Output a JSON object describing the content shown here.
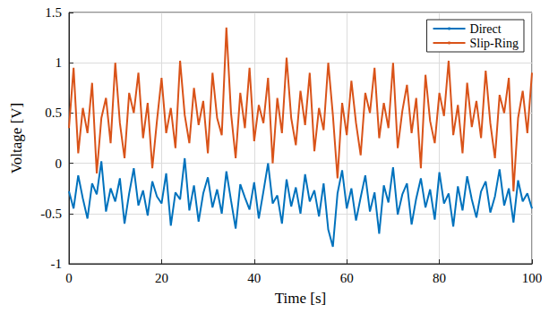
{
  "chart_data": {
    "type": "line",
    "x_label": "Time [s]",
    "y_label": "Voltage [V]",
    "x": [
      0,
      1,
      2,
      3,
      4,
      5,
      6,
      7,
      8,
      9,
      10,
      11,
      12,
      13,
      14,
      15,
      16,
      17,
      18,
      19,
      20,
      21,
      22,
      23,
      24,
      25,
      26,
      27,
      28,
      29,
      30,
      31,
      32,
      33,
      34,
      35,
      36,
      37,
      38,
      39,
      40,
      41,
      42,
      43,
      44,
      45,
      46,
      47,
      48,
      49,
      50,
      51,
      52,
      53,
      54,
      55,
      56,
      57,
      58,
      59,
      60,
      61,
      62,
      63,
      64,
      65,
      66,
      67,
      68,
      69,
      70,
      71,
      72,
      73,
      74,
      75,
      76,
      77,
      78,
      79,
      80,
      81,
      82,
      83,
      84,
      85,
      86,
      87,
      88,
      89,
      90,
      91,
      92,
      93,
      94,
      95,
      96,
      97,
      98,
      99,
      100
    ],
    "series": [
      {
        "name": "Direct",
        "color": "#0072BD",
        "values": [
          -0.28,
          -0.45,
          -0.12,
          -0.35,
          -0.55,
          -0.2,
          -0.31,
          0.02,
          -0.48,
          -0.25,
          -0.38,
          -0.15,
          -0.6,
          -0.3,
          -0.05,
          -0.42,
          -0.27,
          -0.52,
          -0.18,
          -0.33,
          -0.4,
          -0.1,
          -0.62,
          -0.29,
          -0.36,
          0.05,
          -0.47,
          -0.22,
          -0.58,
          -0.3,
          -0.14,
          -0.44,
          -0.26,
          -0.5,
          -0.08,
          -0.37,
          -0.65,
          -0.21,
          -0.34,
          -0.46,
          -0.19,
          -0.55,
          -0.28,
          0.0,
          -0.4,
          -0.32,
          -0.6,
          -0.16,
          -0.43,
          -0.24,
          -0.5,
          -0.11,
          -0.38,
          -0.27,
          -0.53,
          -0.2,
          -0.66,
          -0.83,
          -0.3,
          -0.07,
          -0.45,
          -0.25,
          -0.57,
          -0.34,
          -0.12,
          -0.48,
          -0.29,
          -0.7,
          -0.22,
          -0.39,
          -0.04,
          -0.51,
          -0.31,
          -0.2,
          -0.61,
          -0.35,
          -0.15,
          -0.44,
          -0.26,
          -0.56,
          -0.09,
          -0.4,
          -0.3,
          -0.63,
          -0.23,
          -0.47,
          -0.13,
          -0.36,
          -0.54,
          -0.28,
          -0.18,
          -0.49,
          -0.33,
          -0.06,
          -0.42,
          -0.25,
          -0.59,
          -0.17,
          -0.38,
          -0.3,
          -0.45
        ]
      },
      {
        "name": "Slip-Ring",
        "color": "#D95319",
        "values": [
          0.35,
          0.95,
          0.1,
          0.55,
          0.3,
          0.8,
          -0.1,
          0.45,
          0.65,
          0.2,
          1.0,
          0.4,
          0.05,
          0.7,
          0.5,
          0.9,
          0.25,
          0.6,
          -0.05,
          0.42,
          0.85,
          0.3,
          0.55,
          0.15,
          1.02,
          0.48,
          0.2,
          0.75,
          0.38,
          0.62,
          0.1,
          0.9,
          0.45,
          0.28,
          1.35,
          0.5,
          0.05,
          0.7,
          0.35,
          0.95,
          0.22,
          0.58,
          0.4,
          0.85,
          0.0,
          0.65,
          0.3,
          1.05,
          0.45,
          0.18,
          0.72,
          0.38,
          0.9,
          0.12,
          0.55,
          0.33,
          1.0,
          0.48,
          -0.15,
          0.6,
          0.28,
          0.82,
          0.4,
          0.08,
          0.7,
          0.5,
          0.95,
          0.25,
          0.6,
          0.35,
          1.0,
          0.15,
          0.52,
          0.78,
          0.3,
          0.65,
          -0.05,
          0.88,
          0.42,
          0.2,
          0.7,
          0.47,
          1.02,
          0.28,
          0.58,
          0.1,
          0.8,
          0.36,
          0.62,
          0.25,
          0.92,
          0.4,
          0.05,
          0.68,
          0.5,
          0.85,
          -0.28,
          0.45,
          0.72,
          0.3,
          0.9
        ]
      }
    ],
    "xlim": [
      0,
      100
    ],
    "xticks": [
      0,
      20,
      40,
      60,
      80,
      100
    ],
    "ylim": [
      -1,
      1.5
    ],
    "yticks": [
      -1,
      -0.5,
      0,
      0.5,
      1,
      1.5
    ],
    "grid": true,
    "legend": "northeast"
  }
}
